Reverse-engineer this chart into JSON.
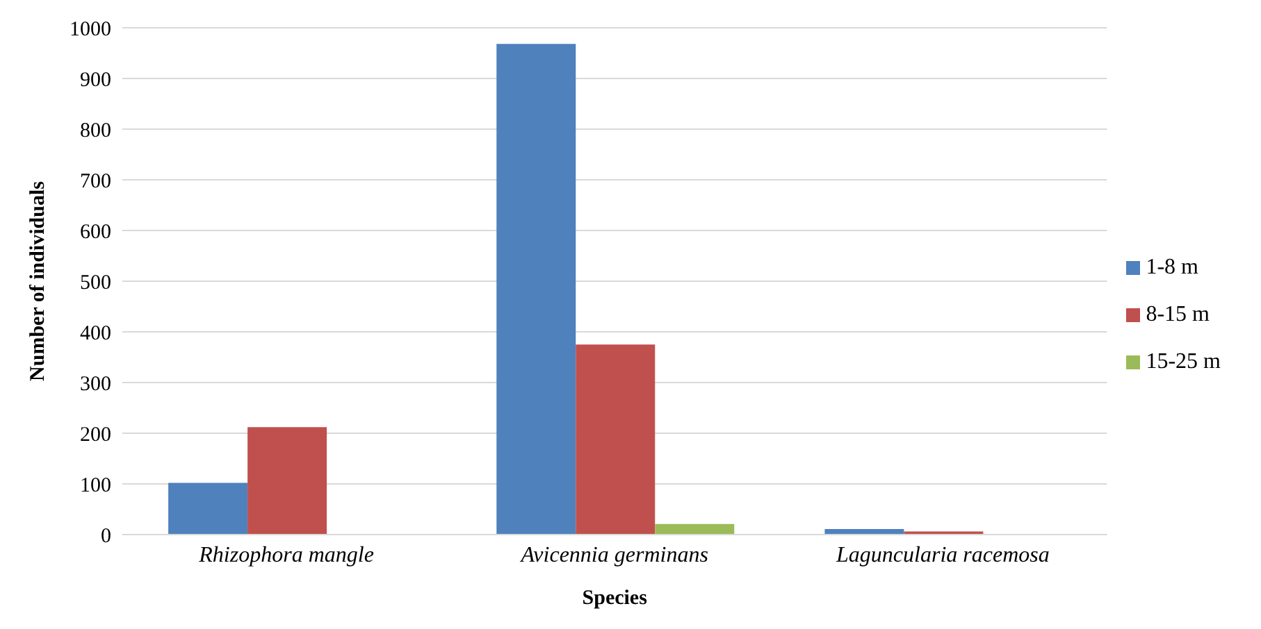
{
  "chart_data": {
    "type": "bar",
    "xlabel": "Species",
    "ylabel": "Number of individuals",
    "categories": [
      "Rhizophora mangle",
      "Avicennia germinans",
      "Laguncularia racemosa"
    ],
    "series": [
      {
        "name": "1-8 m",
        "color": "#4f81bd",
        "values": [
          102,
          968,
          11
        ]
      },
      {
        "name": "8-15 m",
        "color": "#c0504d",
        "values": [
          212,
          375,
          6
        ]
      },
      {
        "name": "15-25 m",
        "color": "#9bbb59",
        "values": [
          0,
          21,
          0
        ]
      }
    ],
    "ylim": [
      0,
      1000
    ],
    "yticks": [
      0,
      100,
      200,
      300,
      400,
      500,
      600,
      700,
      800,
      900,
      1000
    ],
    "grid": "y",
    "legend": "right"
  }
}
